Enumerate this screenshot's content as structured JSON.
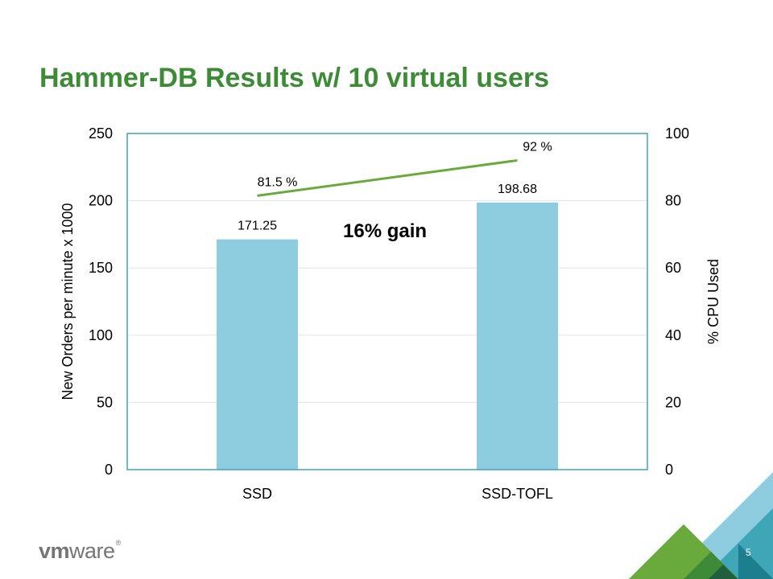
{
  "slide": {
    "title": "Hammer-DB Results w/ 10 virtual users",
    "page_number": "5",
    "logo": {
      "vm": "vm",
      "ware": "ware",
      "reg": "®"
    }
  },
  "colors": {
    "title": "#3d8b37",
    "bar": "#8ecde0",
    "line": "#6aaa3c",
    "plot_border": "#3fa6b8",
    "grid": "#e3e3e3"
  },
  "chart_data": {
    "type": "bar",
    "categories": [
      "SSD",
      "SSD-TOFL"
    ],
    "series": [
      {
        "values": [
          171.25,
          198.68
        ],
        "labels": [
          "171.25",
          "198.68"
        ],
        "axis": "left",
        "type": "bar"
      },
      {
        "values": [
          81.5,
          92
        ],
        "labels": [
          "81.5 %",
          "92 %"
        ],
        "axis": "right",
        "type": "line"
      }
    ],
    "ylabel": "New Orders per minute x 1000",
    "y2label": "% CPU Used",
    "ylim": [
      0,
      250
    ],
    "y2lim": [
      0,
      100
    ],
    "yticks": [
      "0",
      "50",
      "100",
      "150",
      "200",
      "250"
    ],
    "y2ticks": [
      "0",
      "20",
      "40",
      "60",
      "80",
      "100"
    ],
    "annotation": "16% gain",
    "grid": true,
    "legend": "none"
  }
}
